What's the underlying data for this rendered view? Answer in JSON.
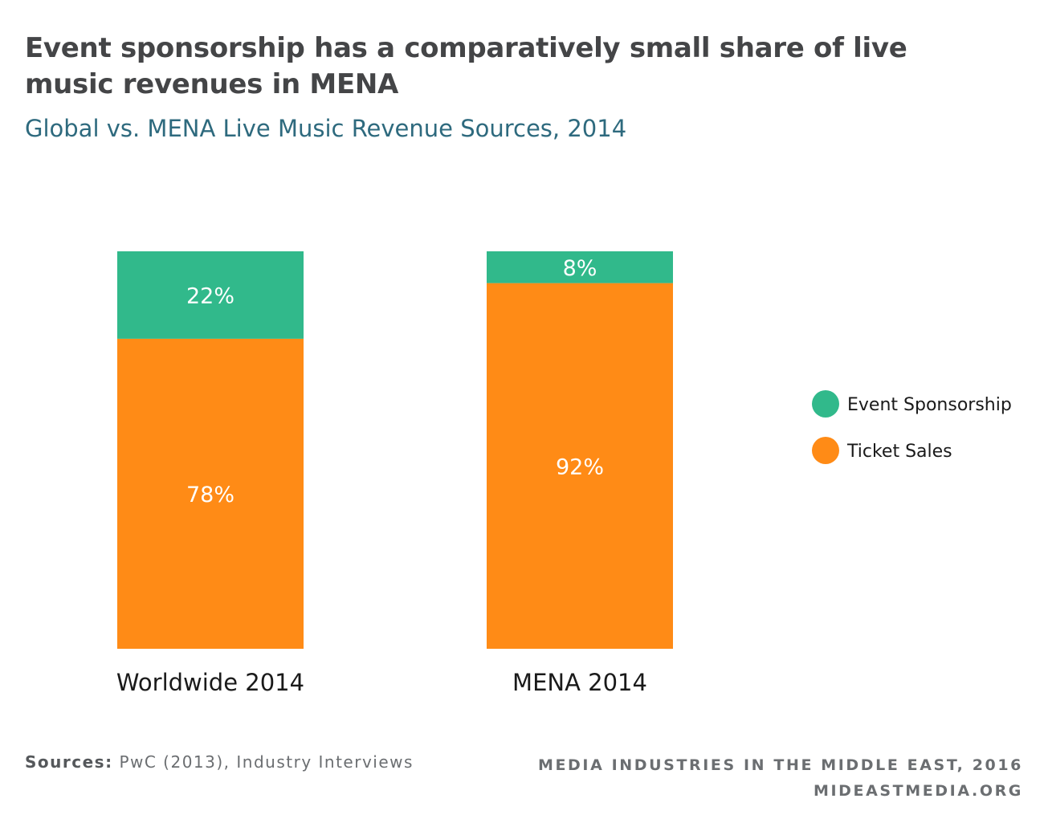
{
  "title": "Event sponsorship has a comparatively small share of live music revenues in MENA",
  "subtitle": "Global vs. MENA Live Music Revenue Sources, 2014",
  "chart_data": {
    "type": "bar",
    "stacked": true,
    "categories": [
      "Worldwide 2014",
      "MENA 2014"
    ],
    "series": [
      {
        "name": "Ticket Sales",
        "values": [
          78,
          92
        ],
        "labels": [
          "78%",
          "92%"
        ],
        "color": "#ff8b16"
      },
      {
        "name": "Event Sponsorship",
        "values": [
          22,
          8
        ],
        "labels": [
          "22%",
          "8%"
        ],
        "color": "#31b98b"
      }
    ],
    "ylim": [
      0,
      100
    ],
    "legend": {
      "position": "right",
      "order": [
        "Event Sponsorship",
        "Ticket Sales"
      ]
    },
    "grid": false
  },
  "footer": {
    "sources_label": "Sources:",
    "sources_text": "PwC (2013), Industry Interviews",
    "publication": "MEDIA INDUSTRIES IN THE MIDDLE EAST, 2016",
    "website": "MIDEASTMEDIA.ORG"
  }
}
